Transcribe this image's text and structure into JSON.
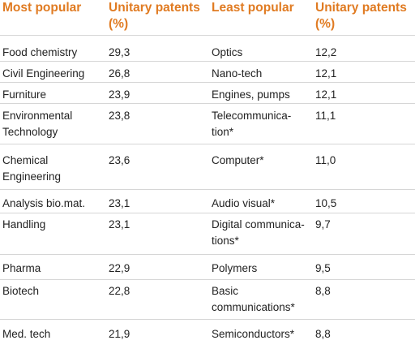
{
  "header": {
    "col1": "Most popular",
    "col2": "Unitary patents (%)",
    "col3": "Least popular",
    "col4": "Unitary patents (%)"
  },
  "rows": [
    {
      "most": "Food chemistry",
      "most_pct": "29,3",
      "least": "Optics",
      "least_pct": "12,2"
    },
    {
      "most": "Civil Engineering",
      "most_pct": "26,8",
      "least": "Nano-tech",
      "least_pct": "12,1"
    },
    {
      "most": "Furniture",
      "most_pct": "23,9",
      "least": "Engines, pumps",
      "least_pct": "12,1"
    },
    {
      "most": "Environmental Technology",
      "most_pct": "23,8",
      "least": "Telecommunica-tion*",
      "least_pct": "11,1"
    },
    {
      "most": "Chemical Engineering",
      "most_pct": "23,6",
      "least": "Computer*",
      "least_pct": "11,0"
    },
    {
      "most": "Analysis bio.mat.",
      "most_pct": "23,1",
      "least": "Audio visual*",
      "least_pct": "10,5"
    },
    {
      "most": "Handling",
      "most_pct": "23,1",
      "least": "Digital communica-tions*",
      "least_pct": "9,7"
    },
    {
      "most": "Pharma",
      "most_pct": "22,9",
      "least": "Polymers",
      "least_pct": "9,5"
    },
    {
      "most": "Biotech",
      "most_pct": "22,8",
      "least": "Basic communications*",
      "least_pct": "8,8"
    },
    {
      "most": "Med. tech",
      "most_pct": "21,9",
      "least": "Semiconductors*",
      "least_pct": "8,8"
    }
  ]
}
